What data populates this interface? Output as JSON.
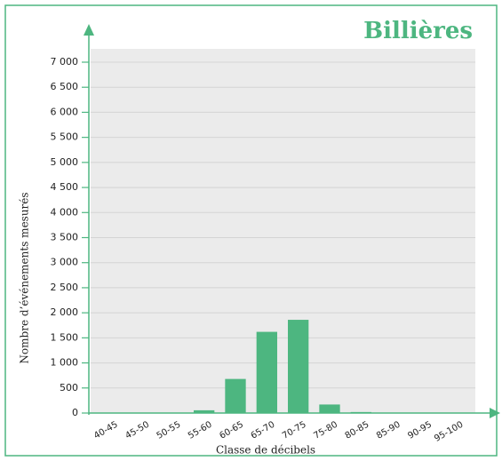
{
  "chart_data": {
    "type": "bar",
    "title": "Billières",
    "xlabel": "Classe de décibels",
    "ylabel": "Nombre d’événements mesurés",
    "categories": [
      "40-45",
      "45-50",
      "50-55",
      "55-60",
      "60-65",
      "65-70",
      "70-75",
      "75-80",
      "80-85",
      "85-90",
      "90-95",
      "95-100"
    ],
    "values": [
      0,
      3,
      3,
      55,
      680,
      1620,
      1860,
      170,
      20,
      5,
      3,
      0
    ],
    "color": "#4db680",
    "ylim": [
      0,
      7000
    ],
    "yticks": [
      0,
      500,
      {
        "value": 1000,
        "label": "1 000"
      },
      {
        "value": 1500,
        "label": "1 500"
      },
      {
        "value": 2000,
        "label": "2 000"
      },
      {
        "value": 2500,
        "label": "2 500"
      },
      {
        "value": 3000,
        "label": "3 000"
      },
      {
        "value": 3500,
        "label": "3 500"
      },
      {
        "value": 4000,
        "label": "4 000"
      },
      {
        "value": 4500,
        "label": "4 500"
      },
      {
        "value": 5000,
        "label": "5 000"
      },
      {
        "value": 5500,
        "label": "5 500"
      },
      {
        "value": 6000,
        "label": "6 000"
      },
      {
        "value": 6500,
        "label": "6 500"
      },
      {
        "value": 7000,
        "label": "7 000"
      }
    ],
    "grid": true
  }
}
